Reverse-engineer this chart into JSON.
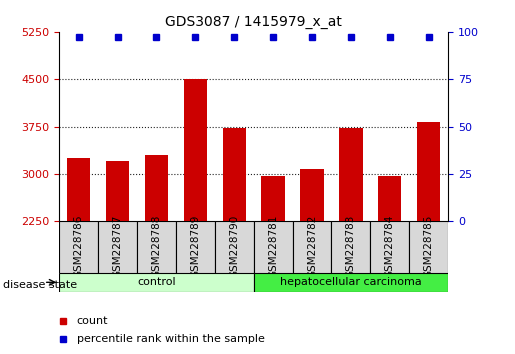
{
  "title": "GDS3087 / 1415979_x_at",
  "samples": [
    "GSM228786",
    "GSM228787",
    "GSM228788",
    "GSM228789",
    "GSM228790",
    "GSM228781",
    "GSM228782",
    "GSM228783",
    "GSM228784",
    "GSM228785"
  ],
  "bar_values": [
    3250,
    3200,
    3300,
    4510,
    3730,
    2960,
    3080,
    3730,
    2960,
    3820
  ],
  "bar_color": "#cc0000",
  "dot_color": "#0000cc",
  "ylim_left": [
    2250,
    5250
  ],
  "ylim_right": [
    0,
    100
  ],
  "yticks_left": [
    2250,
    3000,
    3750,
    4500,
    5250
  ],
  "yticks_right": [
    0,
    25,
    50,
    75,
    100
  ],
  "groups": [
    {
      "label": "control",
      "start": 0,
      "end": 5,
      "color": "#ccffcc"
    },
    {
      "label": "hepatocellular carcinoma",
      "start": 5,
      "end": 10,
      "color": "#44ee44"
    }
  ],
  "disease_state_label": "disease state",
  "legend_items": [
    {
      "color": "#cc0000",
      "marker": "s",
      "label": "count"
    },
    {
      "color": "#0000cc",
      "marker": "s",
      "label": "percentile rank within the sample"
    }
  ],
  "left_tick_color": "#cc0000",
  "right_tick_color": "#0000cc",
  "bar_width": 0.6,
  "sample_box_color": "#d8d8d8",
  "grid_linestyle": "dotted",
  "grid_color": "#222222",
  "title_fontsize": 10,
  "axis_fontsize": 8,
  "label_fontsize": 7.5
}
